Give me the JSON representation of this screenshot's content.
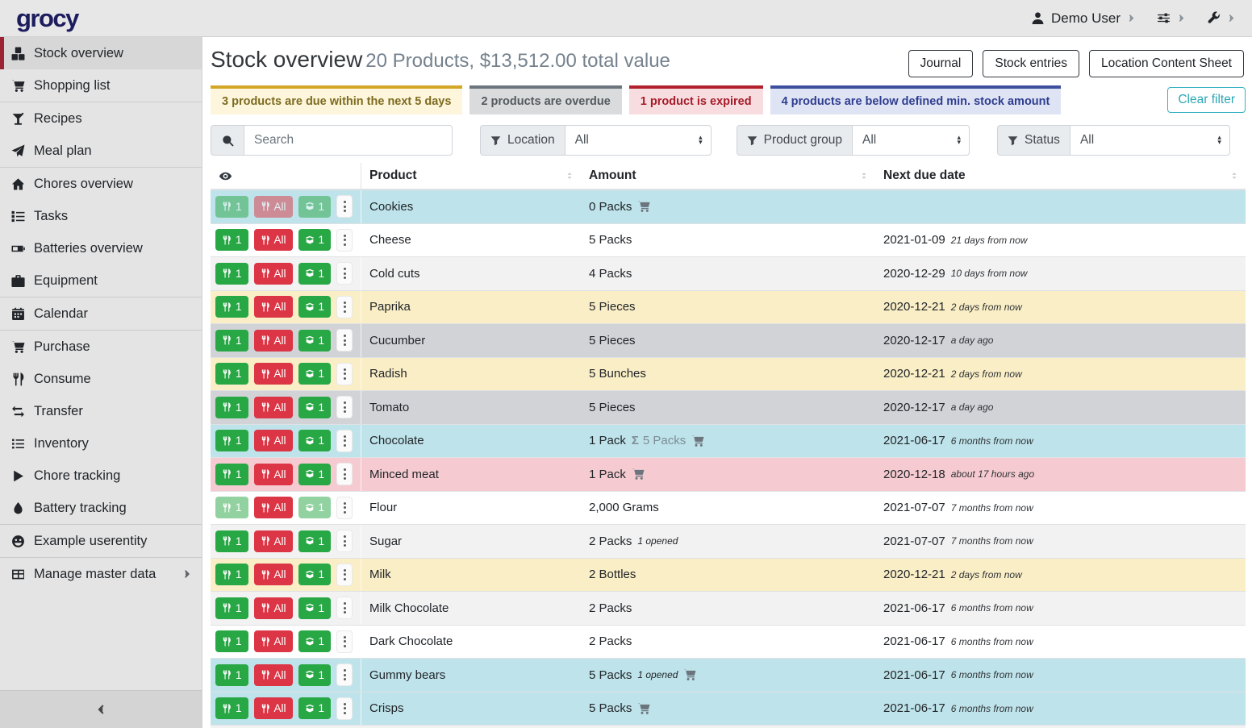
{
  "topbar": {
    "logo_text": "grocy",
    "user_name": "Demo User"
  },
  "sidebar": {
    "items": [
      {
        "label": "Stock overview",
        "icon": "boxes",
        "active": true
      },
      {
        "label": "Shopping list",
        "icon": "shopping-cart",
        "divider_after": true
      },
      {
        "label": "Recipes",
        "icon": "cocktail"
      },
      {
        "label": "Meal plan",
        "icon": "paper-plane",
        "divider_after": true
      },
      {
        "label": "Chores overview",
        "icon": "home"
      },
      {
        "label": "Tasks",
        "icon": "tasks"
      },
      {
        "label": "Batteries overview",
        "icon": "battery"
      },
      {
        "label": "Equipment",
        "icon": "toolbox",
        "divider_after": true
      },
      {
        "label": "Calendar",
        "icon": "calendar",
        "divider_after": true
      },
      {
        "label": "Purchase",
        "icon": "shopping-cart"
      },
      {
        "label": "Consume",
        "icon": "utensils"
      },
      {
        "label": "Transfer",
        "icon": "exchange"
      },
      {
        "label": "Inventory",
        "icon": "list"
      },
      {
        "label": "Chore tracking",
        "icon": "play"
      },
      {
        "label": "Battery tracking",
        "icon": "droplet",
        "divider_after": true
      },
      {
        "label": "Example userentity",
        "icon": "smiley",
        "divider_after": true
      },
      {
        "label": "Manage master data",
        "icon": "table",
        "has_submenu": true
      }
    ]
  },
  "header": {
    "title": "Stock overview",
    "subtitle": "20 Products, $13,512.00 total value",
    "buttons": [
      "Journal",
      "Stock entries",
      "Location Content Sheet"
    ]
  },
  "alerts": [
    {
      "id": "due-soon",
      "text": "3 products are due within the next 5 days",
      "border": "#d3a726",
      "bg": "#fdf5dc",
      "color": "#7d6c1f"
    },
    {
      "id": "overdue",
      "text": "2 products are overdue",
      "border": "#6c757d",
      "bg": "#d9dbdd",
      "color": "#54595e"
    },
    {
      "id": "expired",
      "text": "1 product is expired",
      "border": "#b21f2d",
      "bg": "#f8dde0",
      "color": "#a51c29"
    },
    {
      "id": "below-min-stock",
      "text": "4 products are below defined min. stock amount",
      "border": "#3d509e",
      "bg": "#dfe4f5",
      "color": "#2f3d8f"
    }
  ],
  "filters": {
    "search_placeholder": "Search",
    "groups": [
      {
        "id": "location",
        "label": "Location",
        "value": "All"
      },
      {
        "id": "product-group",
        "label": "Product group",
        "value": "All"
      },
      {
        "id": "status",
        "label": "Status",
        "value": "All"
      }
    ],
    "clear_label": "Clear filter"
  },
  "table": {
    "columns": [
      "Product",
      "Amount",
      "Next due date"
    ],
    "action_labels": {
      "consume_one": "1",
      "consume_all": "All",
      "open_one": "1"
    },
    "sum_symbol": "Σ",
    "row_colors": {
      "below-min-stock": "#bee3ea",
      "due-soon": "#faeec6",
      "overdue": "#d1d3d7",
      "expired": "#f5cbd1",
      "stripe": "#f2f2f2",
      "ok": "#ffffff"
    },
    "rows": [
      {
        "product": "Cookies",
        "amount": "0 Packs",
        "cart": true,
        "due_date": "",
        "due_relative": "",
        "status": "below-min-stock",
        "disabled_buttons": [
          "consume-one",
          "consume-all",
          "open-one"
        ]
      },
      {
        "product": "Cheese",
        "amount": "5 Packs",
        "due_date": "2021-01-09",
        "due_relative": "21 days from now",
        "status": "ok"
      },
      {
        "product": "Cold cuts",
        "amount": "4 Packs",
        "due_date": "2020-12-29",
        "due_relative": "10 days from now",
        "status": "ok"
      },
      {
        "product": "Paprika",
        "amount": "5 Pieces",
        "due_date": "2020-12-21",
        "due_relative": "2 days from now",
        "status": "due-soon"
      },
      {
        "product": "Cucumber",
        "amount": "5 Pieces",
        "due_date": "2020-12-17",
        "due_relative": "a day ago",
        "status": "overdue"
      },
      {
        "product": "Radish",
        "amount": "5 Bunches",
        "due_date": "2020-12-21",
        "due_relative": "2 days from now",
        "status": "due-soon"
      },
      {
        "product": "Tomato",
        "amount": "5 Pieces",
        "due_date": "2020-12-17",
        "due_relative": "a day ago",
        "status": "overdue"
      },
      {
        "product": "Chocolate",
        "amount": "1 Pack",
        "aggregated": "5 Packs",
        "cart": true,
        "due_date": "2021-06-17",
        "due_relative": "6 months from now",
        "status": "below-min-stock"
      },
      {
        "product": "Minced meat",
        "amount": "1 Pack",
        "cart": true,
        "due_date": "2020-12-18",
        "due_relative": "about 17 hours ago",
        "status": "expired"
      },
      {
        "product": "Flour",
        "amount": "2,000 Grams",
        "due_date": "2021-07-07",
        "due_relative": "7 months from now",
        "status": "ok",
        "disabled_buttons": [
          "consume-one",
          "open-one"
        ]
      },
      {
        "product": "Sugar",
        "amount": "2 Packs",
        "opened": "1 opened",
        "due_date": "2021-07-07",
        "due_relative": "7 months from now",
        "status": "ok"
      },
      {
        "product": "Milk",
        "amount": "2 Bottles",
        "due_date": "2020-12-21",
        "due_relative": "2 days from now",
        "status": "due-soon"
      },
      {
        "product": "Milk Chocolate",
        "amount": "2 Packs",
        "due_date": "2021-06-17",
        "due_relative": "6 months from now",
        "status": "ok"
      },
      {
        "product": "Dark Chocolate",
        "amount": "2 Packs",
        "due_date": "2021-06-17",
        "due_relative": "6 months from now",
        "status": "ok"
      },
      {
        "product": "Gummy bears",
        "amount": "5 Packs",
        "opened": "1 opened",
        "cart": true,
        "due_date": "2021-06-17",
        "due_relative": "6 months from now",
        "status": "below-min-stock"
      },
      {
        "product": "Crisps",
        "amount": "5 Packs",
        "cart": true,
        "due_date": "2021-06-17",
        "due_relative": "6 months from now",
        "status": "below-min-stock"
      }
    ]
  }
}
